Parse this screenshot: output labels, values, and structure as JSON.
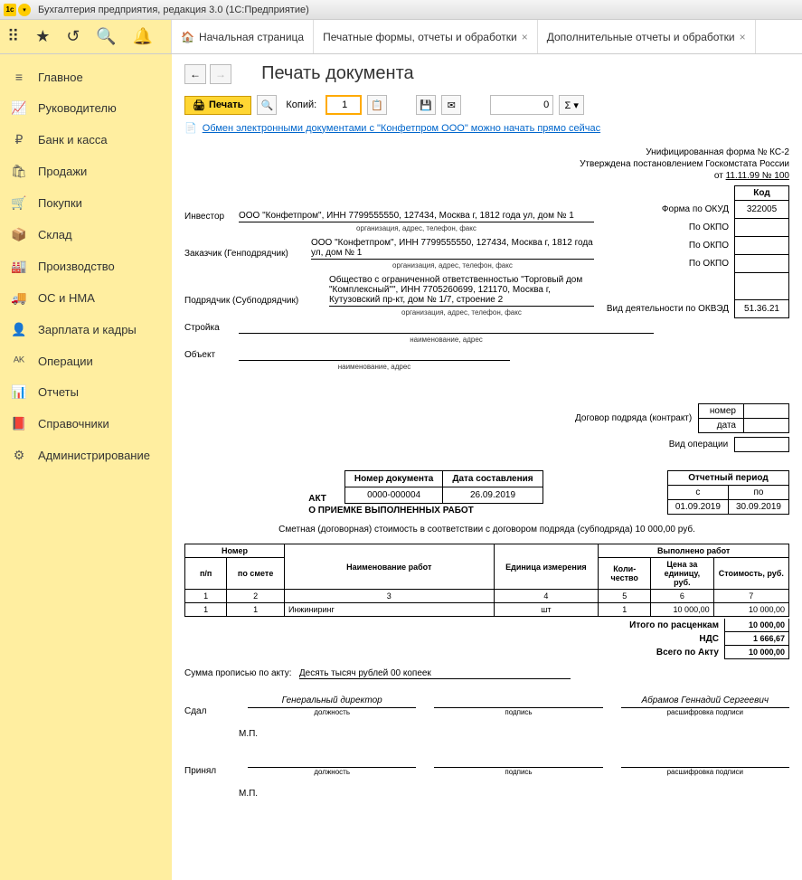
{
  "titlebar": {
    "text": "Бухгалтерия предприятия, редакция 3.0  (1С:Предприятие)"
  },
  "tabs": [
    {
      "label": "Начальная страница",
      "closable": false,
      "icon": "🏠"
    },
    {
      "label": "Печатные формы, отчеты и обработки",
      "closable": true
    },
    {
      "label": "Дополнительные отчеты и обработки",
      "closable": true
    }
  ],
  "nav": [
    {
      "icon": "≡",
      "label": "Главное"
    },
    {
      "icon": "📈",
      "label": "Руководителю"
    },
    {
      "icon": "₽",
      "label": "Банк и касса"
    },
    {
      "icon": "🛍",
      "label": "Продажи"
    },
    {
      "icon": "🛒",
      "label": "Покупки"
    },
    {
      "icon": "📦",
      "label": "Склад"
    },
    {
      "icon": "🏭",
      "label": "Производство"
    },
    {
      "icon": "🚚",
      "label": "ОС и НМА"
    },
    {
      "icon": "👤",
      "label": "Зарплата и кадры"
    },
    {
      "icon": "ᴬᴷ",
      "label": "Операции"
    },
    {
      "icon": "📊",
      "label": "Отчеты"
    },
    {
      "icon": "📕",
      "label": "Справочники"
    },
    {
      "icon": "⚙",
      "label": "Администрирование"
    }
  ],
  "page": {
    "title": "Печать документа"
  },
  "toolbar": {
    "print": "Печать",
    "copies_label": "Копий:",
    "copies_value": "1",
    "sum_value": "0",
    "sigma": "Σ ▾"
  },
  "edo": {
    "text": "Обмен электронными документами с \"Конфетпром ООО\" можно начать прямо сейчас"
  },
  "doc": {
    "form_header": {
      "l1": "Унифицированная форма № КС-2",
      "l2": "Утверждена постановлением  Госкомстата России",
      "l3_pre": "от ",
      "l3_u": "11.11.99 № 100"
    },
    "codes": {
      "kod_header": "Код",
      "okud_label": "Форма по ОКУД",
      "okud": "322005",
      "okpo_label": "По ОКПО",
      "okved_label": "Вид деятельности по ОКВЭД",
      "okved": "51.36.21",
      "contract_label": "Договор подряда (контракт)",
      "number_label": "номер",
      "date_label": "дата",
      "vid_op_label": "Вид операции"
    },
    "parties": {
      "investor_label": "Инвестор",
      "investor_value": "ООО \"Конфетпром\", ИНН 7799555550, 127434, Москва г, 1812 года ул, дом № 1",
      "sub_org": "организация, адрес, телефон, факс",
      "customer_label": "Заказчик (Генподрядчик)",
      "customer_value": "ООО \"Конфетпром\", ИНН 7799555550, 127434, Москва г, 1812 года ул, дом № 1",
      "contractor_label": "Подрядчик (Субподрядчик)",
      "contractor_value": "Общество с ограниченной ответственностью \"Торговый дом \"Комплексный\"\", ИНН 7705260699, 121170, Москва г, Кутузовский пр-кт, дом № 1/7, строение 2",
      "stroika_label": "Стройка",
      "stroika_sub": "наименование, адрес",
      "object_label": "Объект",
      "object_sub": "наименование, адрес"
    },
    "act": {
      "title1": "АКТ",
      "title2": "О ПРИЕМКЕ ВЫПОЛНЕННЫХ РАБОТ",
      "num_header": "Номер документа",
      "date_header": "Дата составления",
      "num": "0000-000004",
      "date": "26.09.2019"
    },
    "period": {
      "header": "Отчетный период",
      "from_label": "с",
      "to_label": "по",
      "from": "01.09.2019",
      "to": "30.09.2019"
    },
    "contract_line": "Сметная (договорная) стоимость в соответствии с договором подряда (субподряда) 10 000,00 руб.",
    "table": {
      "headers": {
        "nomer": "Номер",
        "pp": "п/п",
        "po_smete": "по смете",
        "name": "Наименование работ",
        "unit": "Единица измерения",
        "done": "Выполнено работ",
        "qty": "Коли-чество",
        "price": "Цена за единицу, руб.",
        "cost": "Стоимость, руб."
      },
      "colnums": [
        "1",
        "2",
        "3",
        "4",
        "5",
        "6",
        "7"
      ],
      "rows": [
        {
          "pp": "1",
          "smete": "1",
          "name": "Инжиниринг",
          "unit": "шт",
          "qty": "1",
          "price": "10 000,00",
          "cost": "10 000,00"
        }
      ],
      "totals": {
        "itogo_label": "Итого по расценкам",
        "itogo": "10 000,00",
        "nds_label": "НДС",
        "nds": "1 666,67",
        "vsego_label": "Всего по Акту",
        "vsego": "10 000,00"
      }
    },
    "sum_words": {
      "label": "Сумма прописью по акту:",
      "value": "Десять тысяч рублей 00 копеек"
    },
    "signs": {
      "sdal": "Сдал",
      "prinyal": "Принял",
      "position": "Генеральный директор",
      "position_sub": "должность",
      "sign_sub": "подпись",
      "decode": "Абрамов Геннадий Сергеевич",
      "decode_sub": "расшифровка подписи",
      "mp": "М.П."
    }
  }
}
